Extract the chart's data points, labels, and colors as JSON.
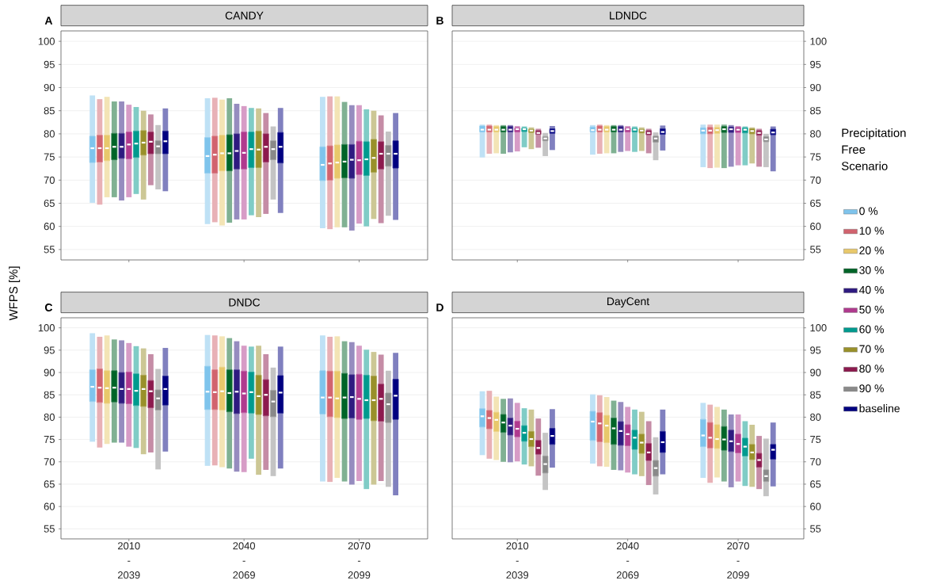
{
  "chart_data": [
    {
      "type": "box",
      "title": "CANDY",
      "annotations": [
        "A"
      ],
      "ylabel": "WFPS [%]",
      "categories": [
        null,
        null,
        null
      ],
      "ylim": [
        52.75,
        102.25
      ],
      "yticks": [
        55,
        60,
        65,
        70,
        75,
        80,
        85,
        90,
        95,
        100
      ],
      "grid": "y",
      "tick_labels": "y",
      "series": [
        {
          "color": "#7fc4ec",
          "boxes": [
            {
              "low": 65.1,
              "q1": 73.8,
              "median": 76.9,
              "q3": 79.5,
              "high": 88.3
            },
            {
              "low": 60.5,
              "q1": 71.5,
              "median": 75.2,
              "q3": 79.2,
              "high": 87.7
            },
            {
              "low": 59.6,
              "q1": 69.9,
              "median": 73.3,
              "q3": 77.2,
              "high": 88.0
            }
          ]
        },
        {
          "color": "#d1636e",
          "boxes": [
            {
              "low": 64.7,
              "q1": 73.9,
              "median": 76.9,
              "q3": 79.7,
              "high": 87.5
            },
            {
              "low": 60.9,
              "q1": 71.5,
              "median": 75.5,
              "q3": 79.5,
              "high": 87.8
            },
            {
              "low": 59.4,
              "q1": 70.0,
              "median": 73.6,
              "q3": 77.4,
              "high": 88.1
            }
          ]
        },
        {
          "color": "#e8c86b",
          "boxes": [
            {
              "low": 66.3,
              "q1": 74.2,
              "median": 76.9,
              "q3": 79.7,
              "high": 88.0
            },
            {
              "low": 60.2,
              "q1": 72.0,
              "median": 75.8,
              "q3": 79.7,
              "high": 87.4
            },
            {
              "low": 59.8,
              "q1": 70.4,
              "median": 73.8,
              "q3": 77.6,
              "high": 88.1
            }
          ]
        },
        {
          "color": "#006428",
          "boxes": [
            {
              "low": 66.3,
              "q1": 74.4,
              "median": 77.2,
              "q3": 80.1,
              "high": 87.0
            },
            {
              "low": 60.8,
              "q1": 72.0,
              "median": 75.8,
              "q3": 79.8,
              "high": 87.7
            },
            {
              "low": 59.8,
              "q1": 70.5,
              "median": 74.0,
              "q3": 77.7,
              "high": 86.9
            }
          ]
        },
        {
          "color": "#2e1a80",
          "boxes": [
            {
              "low": 65.6,
              "q1": 74.7,
              "median": 77.2,
              "q3": 80.1,
              "high": 87.0
            },
            {
              "low": 61.5,
              "q1": 72.4,
              "median": 76.3,
              "q3": 80.0,
              "high": 86.5
            },
            {
              "low": 59.1,
              "q1": 70.4,
              "median": 74.4,
              "q3": 77.7,
              "high": 86.2
            }
          ]
        },
        {
          "color": "#b03a8e",
          "boxes": [
            {
              "low": 66.3,
              "q1": 74.6,
              "median": 77.7,
              "q3": 80.4,
              "high": 86.3
            },
            {
              "low": 61.5,
              "q1": 72.4,
              "median": 75.9,
              "q3": 80.4,
              "high": 86.0
            },
            {
              "low": 60.6,
              "q1": 71.2,
              "median": 74.3,
              "q3": 78.4,
              "high": 86.2
            }
          ]
        },
        {
          "color": "#009a8e",
          "boxes": [
            {
              "low": 67.0,
              "q1": 74.9,
              "median": 77.9,
              "q3": 80.6,
              "high": 85.8
            },
            {
              "low": 62.4,
              "q1": 72.7,
              "median": 76.7,
              "q3": 80.4,
              "high": 85.6
            },
            {
              "low": 60.0,
              "q1": 71.0,
              "median": 74.5,
              "q3": 78.3,
              "high": 85.3
            }
          ]
        },
        {
          "color": "#99902a",
          "boxes": [
            {
              "low": 65.8,
              "q1": 75.4,
              "median": 78.1,
              "q3": 80.7,
              "high": 85.0
            },
            {
              "low": 62.0,
              "q1": 72.7,
              "median": 76.6,
              "q3": 80.6,
              "high": 85.5
            },
            {
              "low": 61.6,
              "q1": 71.7,
              "median": 74.8,
              "q3": 78.8,
              "high": 85.0
            }
          ]
        },
        {
          "color": "#8c1a4e",
          "boxes": [
            {
              "low": 68.9,
              "q1": 75.7,
              "median": 78.3,
              "q3": 80.4,
              "high": 84.2
            },
            {
              "low": 62.7,
              "q1": 73.9,
              "median": 77.2,
              "q3": 80.0,
              "high": 84.5
            },
            {
              "low": 60.7,
              "q1": 72.4,
              "median": 75.7,
              "q3": 78.3,
              "high": 84.0
            }
          ]
        },
        {
          "color": "#898989",
          "boxes": [
            {
              "low": 68.0,
              "q1": 75.7,
              "median": 77.3,
              "q3": 78.5,
              "high": 81.9
            },
            {
              "low": 65.8,
              "q1": 74.4,
              "median": 76.7,
              "q3": 78.5,
              "high": 81.6
            },
            {
              "low": 62.3,
              "q1": 73.0,
              "median": 75.7,
              "q3": 77.5,
              "high": 80.5
            }
          ]
        },
        {
          "color": "#000080",
          "boxes": [
            {
              "low": 67.6,
              "q1": 75.7,
              "median": 78.4,
              "q3": 80.6,
              "high": 85.5
            },
            {
              "low": 62.9,
              "q1": 73.7,
              "median": 77.2,
              "q3": 80.3,
              "high": 85.6
            },
            {
              "low": 61.4,
              "q1": 72.6,
              "median": 75.7,
              "q3": 78.5,
              "high": 84.5
            }
          ]
        }
      ]
    },
    {
      "type": "box",
      "title": "LDNDC",
      "annotations": [
        "B"
      ],
      "categories": [
        null,
        null,
        null
      ],
      "ylim": [
        52.75,
        102.25
      ],
      "yticks": [
        55,
        60,
        65,
        70,
        75,
        80,
        85,
        90,
        95,
        100
      ],
      "grid": "y",
      "tick_labels": "y",
      "legend": "right",
      "legend_title": "Precipitation Free Scenario",
      "series": [
        {
          "name": "0 %",
          "color": "#7fc4ec",
          "boxes": [
            {
              "low": 74.9,
              "q1": 80.4,
              "median": 80.9,
              "q3": 81.7,
              "high": 82.0
            },
            {
              "low": 75.5,
              "q1": 80.4,
              "median": 80.8,
              "q3": 81.5,
              "high": 81.9
            },
            {
              "low": 72.8,
              "q1": 80.0,
              "median": 80.7,
              "q3": 81.3,
              "high": 82.0
            }
          ]
        },
        {
          "name": "10 %",
          "color": "#d1636e",
          "boxes": [
            {
              "low": 75.7,
              "q1": 80.4,
              "median": 80.9,
              "q3": 81.7,
              "high": 82.0
            },
            {
              "low": 75.7,
              "q1": 80.4,
              "median": 80.9,
              "q3": 81.7,
              "high": 82.0
            },
            {
              "low": 72.6,
              "q1": 80.0,
              "median": 80.7,
              "q3": 81.4,
              "high": 82.0
            }
          ]
        },
        {
          "name": "20 %",
          "color": "#e8c86b",
          "boxes": [
            {
              "low": 75.8,
              "q1": 80.4,
              "median": 80.9,
              "q3": 81.6,
              "high": 81.9
            },
            {
              "low": 75.8,
              "q1": 80.4,
              "median": 80.9,
              "q3": 81.6,
              "high": 81.9
            },
            {
              "low": 72.7,
              "q1": 80.1,
              "median": 80.8,
              "q3": 81.4,
              "high": 82.0
            }
          ]
        },
        {
          "name": "30 %",
          "color": "#006428",
          "boxes": [
            {
              "low": 75.7,
              "q1": 80.4,
              "median": 80.9,
              "q3": 81.6,
              "high": 81.9
            },
            {
              "low": 75.8,
              "q1": 80.4,
              "median": 80.9,
              "q3": 81.6,
              "high": 81.9
            },
            {
              "low": 72.6,
              "q1": 80.3,
              "median": 81.0,
              "q3": 81.6,
              "high": 82.0
            }
          ]
        },
        {
          "name": "40 %",
          "color": "#2e1a80",
          "boxes": [
            {
              "low": 76.0,
              "q1": 80.4,
              "median": 80.9,
              "q3": 81.6,
              "high": 81.9
            },
            {
              "low": 76.1,
              "q1": 80.4,
              "median": 80.9,
              "q3": 81.6,
              "high": 81.9
            },
            {
              "low": 72.9,
              "q1": 80.3,
              "median": 81.0,
              "q3": 81.5,
              "high": 81.9
            }
          ]
        },
        {
          "name": "50 %",
          "color": "#b03a8e",
          "boxes": [
            {
              "low": 76.2,
              "q1": 80.4,
              "median": 81.0,
              "q3": 81.3,
              "high": 81.7
            },
            {
              "low": 76.3,
              "q1": 80.4,
              "median": 81.0,
              "q3": 81.3,
              "high": 81.7
            },
            {
              "low": 73.2,
              "q1": 80.3,
              "median": 80.9,
              "q3": 81.4,
              "high": 81.7
            }
          ]
        },
        {
          "name": "60 %",
          "color": "#009a8e",
          "boxes": [
            {
              "low": 77.1,
              "q1": 80.5,
              "median": 81.0,
              "q3": 81.2,
              "high": 81.6
            },
            {
              "low": 76.1,
              "q1": 80.4,
              "median": 80.9,
              "q3": 81.2,
              "high": 81.6
            },
            {
              "low": 73.2,
              "q1": 80.2,
              "median": 80.9,
              "q3": 81.3,
              "high": 81.6
            }
          ]
        },
        {
          "name": "70 %",
          "color": "#99902a",
          "boxes": [
            {
              "low": 76.7,
              "q1": 80.3,
              "median": 80.7,
              "q3": 81.0,
              "high": 81.4
            },
            {
              "low": 76.3,
              "q1": 80.2,
              "median": 80.7,
              "q3": 81.0,
              "high": 81.4
            },
            {
              "low": 73.6,
              "q1": 80.0,
              "median": 80.6,
              "q3": 81.1,
              "high": 81.4
            }
          ]
        },
        {
          "name": "80 %",
          "color": "#8c1a4e",
          "boxes": [
            {
              "low": 77.0,
              "q1": 79.9,
              "median": 80.2,
              "q3": 80.7,
              "high": 81.1
            },
            {
              "low": 75.8,
              "q1": 79.8,
              "median": 80.2,
              "q3": 80.7,
              "high": 81.1
            },
            {
              "low": 72.9,
              "q1": 79.7,
              "median": 80.2,
              "q3": 80.7,
              "high": 81.1
            }
          ]
        },
        {
          "name": "90 %",
          "color": "#898989",
          "boxes": [
            {
              "low": 75.2,
              "q1": 78.5,
              "median": 79.0,
              "q3": 79.4,
              "high": 80.2
            },
            {
              "low": 74.3,
              "q1": 78.2,
              "median": 79.0,
              "q3": 79.5,
              "high": 80.3
            },
            {
              "low": 72.8,
              "q1": 78.3,
              "median": 78.8,
              "q3": 79.4,
              "high": 80.0
            }
          ]
        },
        {
          "name": "baseline",
          "color": "#000080",
          "boxes": [
            {
              "low": 76.5,
              "q1": 80.1,
              "median": 80.6,
              "q3": 81.1,
              "high": 81.7
            },
            {
              "low": 76.4,
              "q1": 79.9,
              "median": 80.4,
              "q3": 81.1,
              "high": 81.8
            },
            {
              "low": 71.9,
              "q1": 79.8,
              "median": 80.3,
              "q3": 81.0,
              "high": 81.6
            }
          ]
        }
      ]
    },
    {
      "type": "box",
      "title": "DNDC",
      "annotations": [
        "C"
      ],
      "categories": [
        "2010 - 2039",
        "2040 - 2069",
        "2070 - 2099"
      ],
      "ylim": [
        52.75,
        102.25
      ],
      "yticks": [
        55,
        60,
        65,
        70,
        75,
        80,
        85,
        90,
        95,
        100
      ],
      "grid": "y",
      "series": [
        {
          "color": "#7fc4ec",
          "boxes": [
            {
              "low": 74.5,
              "q1": 83.5,
              "median": 86.8,
              "q3": 90.6,
              "high": 98.8
            },
            {
              "low": 69.1,
              "q1": 81.7,
              "median": 85.7,
              "q3": 91.4,
              "high": 98.4
            },
            {
              "low": 65.6,
              "q1": 80.7,
              "median": 84.4,
              "q3": 90.4,
              "high": 98.3
            }
          ]
        },
        {
          "color": "#d1636e",
          "boxes": [
            {
              "low": 73.2,
              "q1": 83.3,
              "median": 86.6,
              "q3": 90.8,
              "high": 98.0
            },
            {
              "low": 69.2,
              "q1": 81.7,
              "median": 85.6,
              "q3": 90.6,
              "high": 98.3
            },
            {
              "low": 65.5,
              "q1": 80.1,
              "median": 84.4,
              "q3": 90.3,
              "high": 98.0
            }
          ]
        },
        {
          "color": "#e8c86b",
          "boxes": [
            {
              "low": 74.0,
              "q1": 83.1,
              "median": 86.5,
              "q3": 90.4,
              "high": 98.3
            },
            {
              "low": 68.8,
              "q1": 81.6,
              "median": 85.8,
              "q3": 91.2,
              "high": 98.1
            },
            {
              "low": 66.4,
              "q1": 79.9,
              "median": 84.2,
              "q3": 90.3,
              "high": 98.1
            }
          ]
        },
        {
          "color": "#006428",
          "boxes": [
            {
              "low": 74.3,
              "q1": 83.4,
              "median": 86.6,
              "q3": 90.4,
              "high": 97.4
            },
            {
              "low": 68.5,
              "q1": 81.2,
              "median": 85.4,
              "q3": 90.6,
              "high": 97.7
            },
            {
              "low": 65.6,
              "q1": 79.7,
              "median": 84.4,
              "q3": 89.8,
              "high": 97.0
            }
          ]
        },
        {
          "color": "#2e1a80",
          "boxes": [
            {
              "low": 74.3,
              "q1": 83.1,
              "median": 86.3,
              "q3": 90.0,
              "high": 97.2
            },
            {
              "low": 67.8,
              "q1": 80.8,
              "median": 85.7,
              "q3": 90.6,
              "high": 97.0
            },
            {
              "low": 64.9,
              "q1": 79.8,
              "median": 84.5,
              "q3": 89.5,
              "high": 96.8
            }
          ]
        },
        {
          "color": "#b03a8e",
          "boxes": [
            {
              "low": 73.4,
              "q1": 83.0,
              "median": 86.3,
              "q3": 90.1,
              "high": 96.6
            },
            {
              "low": 67.7,
              "q1": 81.0,
              "median": 85.3,
              "q3": 90.3,
              "high": 96.0
            },
            {
              "low": 65.7,
              "q1": 79.5,
              "median": 84.1,
              "q3": 89.6,
              "high": 96.0
            }
          ]
        },
        {
          "color": "#009a8e",
          "boxes": [
            {
              "low": 73.1,
              "q1": 82.6,
              "median": 85.9,
              "q3": 89.7,
              "high": 95.9
            },
            {
              "low": 70.7,
              "q1": 80.9,
              "median": 85.6,
              "q3": 90.1,
              "high": 95.8
            },
            {
              "low": 63.9,
              "q1": 79.7,
              "median": 83.8,
              "q3": 89.4,
              "high": 95.1
            }
          ]
        },
        {
          "color": "#99902a",
          "boxes": [
            {
              "low": 71.7,
              "q1": 82.4,
              "median": 86.3,
              "q3": 89.4,
              "high": 95.4
            },
            {
              "low": 67.1,
              "q1": 80.6,
              "median": 84.7,
              "q3": 89.4,
              "high": 96.0
            },
            {
              "low": 64.9,
              "q1": 79.2,
              "median": 83.8,
              "q3": 89.2,
              "high": 94.6
            }
          ]
        },
        {
          "color": "#8c1a4e",
          "boxes": [
            {
              "low": 72.1,
              "q1": 82.1,
              "median": 85.8,
              "q3": 88.2,
              "high": 94.1
            },
            {
              "low": 68.2,
              "q1": 80.3,
              "median": 85.0,
              "q3": 88.4,
              "high": 94.1
            },
            {
              "low": 65.7,
              "q1": 79.1,
              "median": 84.1,
              "q3": 87.4,
              "high": 94.0
            }
          ]
        },
        {
          "color": "#898989",
          "boxes": [
            {
              "low": 68.3,
              "q1": 81.6,
              "median": 84.2,
              "q3": 86.1,
              "high": 90.8
            },
            {
              "low": 66.8,
              "q1": 80.1,
              "median": 83.5,
              "q3": 86.0,
              "high": 91.1
            },
            {
              "low": 64.4,
              "q1": 78.8,
              "median": 82.9,
              "q3": 85.4,
              "high": 90.4
            }
          ]
        },
        {
          "color": "#000080",
          "boxes": [
            {
              "low": 72.3,
              "q1": 82.7,
              "median": 86.3,
              "q3": 89.2,
              "high": 95.5
            },
            {
              "low": 68.5,
              "q1": 80.9,
              "median": 85.5,
              "q3": 89.3,
              "high": 95.8
            },
            {
              "low": 62.5,
              "q1": 79.5,
              "median": 84.8,
              "q3": 88.5,
              "high": 94.4
            }
          ]
        }
      ]
    },
    {
      "type": "box",
      "title": "DayCent",
      "annotations": [
        "D"
      ],
      "categories": [
        "2010 - 2039",
        "2040 - 2069",
        "2070 - 2099"
      ],
      "ylim": [
        52.75,
        102.25
      ],
      "yticks": [
        55,
        60,
        65,
        70,
        75,
        80,
        85,
        90,
        95,
        100
      ],
      "grid": "y",
      "series": [
        {
          "color": "#7fc4ec",
          "boxes": [
            {
              "low": 71.5,
              "q1": 77.8,
              "median": 80.2,
              "q3": 81.9,
              "high": 85.8
            },
            {
              "low": 69.6,
              "q1": 74.8,
              "median": 79.0,
              "q3": 81.3,
              "high": 85.1
            },
            {
              "low": 66.4,
              "q1": 73.4,
              "median": 75.9,
              "q3": 79.5,
              "high": 83.2
            }
          ]
        },
        {
          "color": "#d1636e",
          "boxes": [
            {
              "low": 70.7,
              "q1": 77.4,
              "median": 79.8,
              "q3": 81.5,
              "high": 85.9
            },
            {
              "low": 69.0,
              "q1": 74.5,
              "median": 78.6,
              "q3": 81.0,
              "high": 84.9
            },
            {
              "low": 65.3,
              "q1": 73.1,
              "median": 75.4,
              "q3": 78.8,
              "high": 82.8
            }
          ]
        },
        {
          "color": "#e8c86b",
          "boxes": [
            {
              "low": 70.4,
              "q1": 76.8,
              "median": 79.4,
              "q3": 81.1,
              "high": 84.6
            },
            {
              "low": 68.9,
              "q1": 74.3,
              "median": 78.1,
              "q3": 80.4,
              "high": 84.5
            },
            {
              "low": 66.5,
              "q1": 73.0,
              "median": 75.1,
              "q3": 78.3,
              "high": 82.3
            }
          ]
        },
        {
          "color": "#006428",
          "boxes": [
            {
              "low": 70.0,
              "q1": 76.6,
              "median": 78.8,
              "q3": 80.6,
              "high": 84.1
            },
            {
              "low": 68.2,
              "q1": 73.9,
              "median": 77.5,
              "q3": 79.8,
              "high": 83.7
            },
            {
              "low": 65.6,
              "q1": 72.6,
              "median": 75.0,
              "q3": 77.9,
              "high": 81.7
            }
          ]
        },
        {
          "color": "#2e1a80",
          "boxes": [
            {
              "low": 69.9,
              "q1": 76.0,
              "median": 78.1,
              "q3": 79.8,
              "high": 84.2
            },
            {
              "low": 68.1,
              "q1": 73.7,
              "median": 76.9,
              "q3": 79.0,
              "high": 83.4
            },
            {
              "low": 64.3,
              "q1": 72.3,
              "median": 74.6,
              "q3": 77.1,
              "high": 80.6
            }
          ]
        },
        {
          "color": "#b03a8e",
          "boxes": [
            {
              "low": 70.1,
              "q1": 75.6,
              "median": 77.4,
              "q3": 79.1,
              "high": 83.2
            },
            {
              "low": 67.6,
              "q1": 73.6,
              "median": 76.2,
              "q3": 78.3,
              "high": 82.3
            },
            {
              "low": 65.6,
              "q1": 72.0,
              "median": 74.0,
              "q3": 76.2,
              "high": 80.6
            }
          ]
        },
        {
          "color": "#009a8e",
          "boxes": [
            {
              "low": 69.4,
              "q1": 74.6,
              "median": 76.5,
              "q3": 78.1,
              "high": 82.0
            },
            {
              "low": 67.2,
              "q1": 72.8,
              "median": 75.4,
              "q3": 77.1,
              "high": 81.7
            },
            {
              "low": 64.6,
              "q1": 71.3,
              "median": 73.4,
              "q3": 75.3,
              "high": 79.1
            }
          ]
        },
        {
          "color": "#99902a",
          "boxes": [
            {
              "low": 69.0,
              "q1": 73.4,
              "median": 75.1,
              "q3": 76.8,
              "high": 81.7
            },
            {
              "low": 66.8,
              "q1": 71.9,
              "median": 74.3,
              "q3": 76.2,
              "high": 81.2
            },
            {
              "low": 64.4,
              "q1": 70.5,
              "median": 72.1,
              "q3": 73.9,
              "high": 78.3
            }
          ]
        },
        {
          "color": "#8c1a4e",
          "boxes": [
            {
              "low": 66.9,
              "q1": 71.7,
              "median": 73.1,
              "q3": 74.8,
              "high": 79.7
            },
            {
              "low": 64.8,
              "q1": 70.3,
              "median": 72.1,
              "q3": 74.1,
              "high": 79.1
            },
            {
              "low": 63.9,
              "q1": 68.8,
              "median": 70.4,
              "q3": 71.9,
              "high": 75.8
            }
          ]
        },
        {
          "color": "#898989",
          "boxes": [
            {
              "low": 63.7,
              "q1": 67.5,
              "median": 69.5,
              "q3": 71.3,
              "high": 76.5
            },
            {
              "low": 62.7,
              "q1": 66.8,
              "median": 68.6,
              "q3": 70.3,
              "high": 75.5
            },
            {
              "low": 62.3,
              "q1": 65.6,
              "median": 66.8,
              "q3": 68.2,
              "high": 75.2
            }
          ]
        },
        {
          "color": "#000080",
          "boxes": [
            {
              "low": 68.7,
              "q1": 73.9,
              "median": 75.8,
              "q3": 77.5,
              "high": 81.8
            },
            {
              "low": 67.2,
              "q1": 72.1,
              "median": 74.4,
              "q3": 76.8,
              "high": 81.7
            },
            {
              "low": 64.5,
              "q1": 70.6,
              "median": 72.7,
              "q3": 73.9,
              "high": 78.8
            }
          ]
        }
      ]
    }
  ]
}
